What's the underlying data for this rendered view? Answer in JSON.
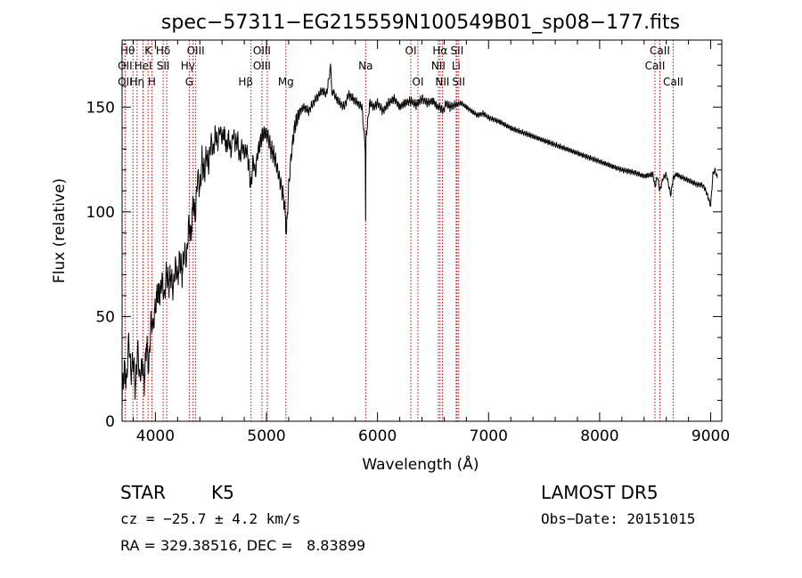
{
  "chart_data": {
    "type": "line",
    "title": "spec−57311−EG215559N100549B01_sp08−177.fits",
    "xlabel": "Wavelength (Å)",
    "ylabel": "Flux (relative)",
    "xlim": [
      3700,
      9100
    ],
    "ylim": [
      0,
      182
    ],
    "xticks": [
      4000,
      5000,
      6000,
      7000,
      8000,
      9000
    ],
    "yticks": [
      0,
      50,
      100,
      150
    ],
    "grid": false,
    "series": [
      {
        "x": [
          3700,
          3720,
          3740,
          3760,
          3780,
          3800,
          3820,
          3840,
          3860,
          3880,
          3900,
          3920,
          3940,
          3960,
          3980,
          4000,
          4020,
          4040,
          4060,
          4080,
          4100,
          4120,
          4140,
          4160,
          4180,
          4200,
          4220,
          4240,
          4260,
          4280,
          4300,
          4320,
          4340,
          4360,
          4380,
          4400,
          4420,
          4440,
          4460,
          4480,
          4500,
          4520,
          4540,
          4560,
          4580,
          4600,
          4620,
          4640,
          4660,
          4680,
          4700,
          4720,
          4740,
          4760,
          4780,
          4800,
          4820,
          4840,
          4860,
          4880,
          4900,
          4920,
          4940,
          4960,
          4980,
          5000,
          5020,
          5040,
          5060,
          5080,
          5100,
          5120,
          5140,
          5160,
          5180,
          5200,
          5220,
          5240,
          5260,
          5280,
          5300,
          5340,
          5380,
          5420,
          5460,
          5500,
          5540,
          5580,
          5590,
          5600,
          5620,
          5660,
          5700,
          5740,
          5780,
          5820,
          5860,
          5890,
          5893,
          5896,
          5930,
          5970,
          6000,
          6050,
          6100,
          6150,
          6200,
          6250,
          6300,
          6350,
          6400,
          6450,
          6500,
          6540,
          6563,
          6590,
          6620,
          6650,
          6700,
          6750,
          6800,
          6850,
          6900,
          6950,
          7000,
          7100,
          7200,
          7300,
          7400,
          7500,
          7600,
          7700,
          7800,
          7900,
          8000,
          8100,
          8200,
          8300,
          8400,
          8480,
          8498,
          8520,
          8542,
          8570,
          8600,
          8640,
          8662,
          8690,
          8720,
          8760,
          8800,
          8840,
          8880,
          8910,
          8940,
          8970,
          9000,
          9020,
          9040,
          9060
        ],
        "values": [
          12,
          25,
          18,
          40,
          22,
          30,
          15,
          35,
          20,
          28,
          18,
          38,
          25,
          48,
          45,
          55,
          62,
          60,
          68,
          58,
          72,
          65,
          70,
          62,
          75,
          68,
          78,
          70,
          82,
          76,
          95,
          88,
          105,
          98,
          118,
          110,
          125,
          118,
          128,
          122,
          135,
          128,
          138,
          132,
          140,
          135,
          138,
          130,
          136,
          128,
          138,
          132,
          135,
          125,
          132,
          128,
          130,
          122,
          112,
          125,
          118,
          128,
          132,
          136,
          138,
          137,
          135,
          130,
          128,
          125,
          120,
          115,
          110,
          105,
          90,
          112,
          125,
          135,
          142,
          145,
          148,
          150,
          148,
          152,
          155,
          158,
          156,
          170,
          155,
          158,
          155,
          152,
          150,
          156,
          154,
          152,
          150,
          130,
          95,
          135,
          152,
          150,
          152,
          148,
          152,
          154,
          150,
          152,
          153,
          151,
          154,
          152,
          153,
          150,
          150,
          148,
          152,
          150,
          151,
          152,
          150,
          148,
          146,
          147,
          145,
          143,
          140,
          138,
          136,
          134,
          132,
          130,
          128,
          126,
          124,
          122,
          120,
          119,
          117,
          118,
          112,
          117,
          110,
          116,
          118,
          108,
          116,
          118,
          117,
          116,
          115,
          114,
          113,
          113,
          112,
          108,
          103,
          118,
          120,
          116
        ]
      }
    ],
    "line_markers": [
      {
        "label": "Hθ",
        "x": 3798,
        "row": 1,
        "dx": -6
      },
      {
        "label": "K",
        "x": 3934,
        "row": 1,
        "dx": 0
      },
      {
        "label": "Hδ",
        "x": 4102,
        "row": 1,
        "dx": -4
      },
      {
        "label": "OIII",
        "x": 4363,
        "row": 1,
        "dx": 0
      },
      {
        "label": "OIII",
        "x": 4959,
        "row": 1,
        "dx": 0
      },
      {
        "label": "OI",
        "x": 6300,
        "row": 1,
        "dx": 0
      },
      {
        "label": "Hα",
        "x": 6563,
        "row": 1,
        "dx": 0
      },
      {
        "label": "SII",
        "x": 6716,
        "row": 1,
        "dx": 0
      },
      {
        "label": "CaII",
        "x": 8542,
        "row": 1,
        "dx": 0
      },
      {
        "label": "OII",
        "x": 3727,
        "row": 2,
        "dx": 0
      },
      {
        "label": "HeI",
        "x": 3889,
        "row": 2,
        "dx": 0
      },
      {
        "label": "SII",
        "x": 4070,
        "row": 2,
        "dx": 0
      },
      {
        "label": "Hγ",
        "x": 4340,
        "row": 2,
        "dx": -6
      },
      {
        "label": "OIII",
        "x": 4959,
        "row": 2,
        "dx": 0
      },
      {
        "label": "Na",
        "x": 5893,
        "row": 2,
        "dx": 0
      },
      {
        "label": "NII",
        "x": 6548,
        "row": 2,
        "dx": 0
      },
      {
        "label": "Li",
        "x": 6708,
        "row": 2,
        "dx": 0
      },
      {
        "label": "CaII",
        "x": 8498,
        "row": 2,
        "dx": 0
      },
      {
        "label": "OII",
        "x": 3727,
        "row": 3,
        "dx": 0
      },
      {
        "label": "Hη",
        "x": 3835,
        "row": 3,
        "dx": 0
      },
      {
        "label": "H",
        "x": 3968,
        "row": 3,
        "dx": 0
      },
      {
        "label": "G",
        "x": 4305,
        "row": 3,
        "dx": 0
      },
      {
        "label": "Hβ",
        "x": 4861,
        "row": 3,
        "dx": -6
      },
      {
        "label": "Mg",
        "x": 5175,
        "row": 3,
        "dx": 0
      },
      {
        "label": "OI",
        "x": 6364,
        "row": 3,
        "dx": 0
      },
      {
        "label": "NII",
        "x": 6584,
        "row": 3,
        "dx": 0
      },
      {
        "label": "SII",
        "x": 6731,
        "row": 3,
        "dx": 0
      },
      {
        "label": "CaII",
        "x": 8662,
        "row": 3,
        "dx": 0
      }
    ],
    "marker_lines_x": [
      3727,
      3798,
      3835,
      3889,
      3934,
      3968,
      4070,
      4102,
      4305,
      4340,
      4363,
      4861,
      4959,
      5007,
      5175,
      5893,
      6300,
      6364,
      6548,
      6563,
      6584,
      6708,
      6716,
      6731,
      8498,
      8542,
      8662
    ]
  },
  "info": {
    "object_type": "STAR",
    "subclass": "K5",
    "survey": "LAMOST DR5",
    "cz": "cz = −25.7 ± 4.2 km/s",
    "obs_date": "Obs−Date: 20151015",
    "coords": "RA = 329.38516, DEC =   8.83899"
  },
  "colors": {
    "spectrum": "#000000",
    "marker_lines": "#c00000",
    "axes": "#000000"
  }
}
